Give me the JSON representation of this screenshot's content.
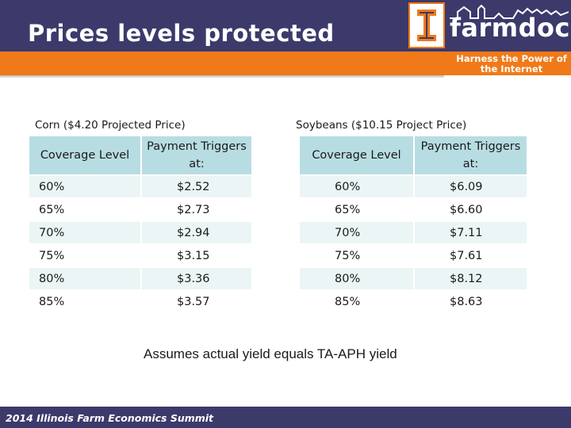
{
  "slide": {
    "title": "Prices levels protected",
    "footer": "2014 Illinois Farm Economics Summit",
    "note": "Assumes actual yield equals TA-APH yield"
  },
  "logo": {
    "wordmark": "farmdoc",
    "tagline": "Harness the Power of the Internet",
    "colors": {
      "navy": "#3b3a6b",
      "orange": "#f07a19"
    }
  },
  "tables": {
    "corn": {
      "caption": "Corn ($4.20 Projected Price)",
      "headers": [
        "Coverage Level",
        "Payment Triggers at:"
      ],
      "rows": [
        [
          "60%",
          "$2.52"
        ],
        [
          "65%",
          "$2.73"
        ],
        [
          "70%",
          "$2.94"
        ],
        [
          "75%",
          "$3.15"
        ],
        [
          "80%",
          "$3.36"
        ],
        [
          "85%",
          "$3.57"
        ]
      ]
    },
    "soybeans": {
      "caption": "Soybeans ($10.15 Project Price)",
      "headers": [
        "Coverage Level",
        "Payment Triggers at:"
      ],
      "rows": [
        [
          "60%",
          "$6.09"
        ],
        [
          "65%",
          "$6.60"
        ],
        [
          "70%",
          "$7.11"
        ],
        [
          "75%",
          "$7.61"
        ],
        [
          "80%",
          "$8.12"
        ],
        [
          "85%",
          "$8.63"
        ]
      ]
    }
  }
}
